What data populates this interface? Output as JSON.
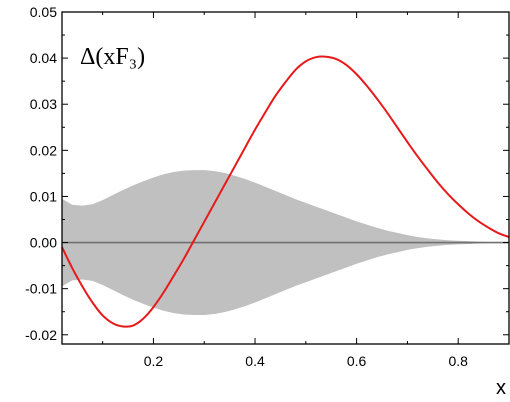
{
  "chart_data": {
    "type": "line",
    "title": "Δ(xF₃)",
    "xlabel": "x",
    "ylabel": "",
    "xlim": [
      0.02,
      0.9
    ],
    "ylim": [
      -0.022,
      0.05
    ],
    "x_ticks": [
      0.2,
      0.4,
      0.6,
      0.8
    ],
    "x_tick_labels": [
      "0.2",
      "0.4",
      "0.6",
      "0.8"
    ],
    "y_ticks": [
      -0.02,
      -0.01,
      0.0,
      0.01,
      0.02,
      0.03,
      0.04,
      0.05
    ],
    "y_tick_labels": [
      "-0.02",
      "-0.01",
      "0.00",
      "0.01",
      "0.02",
      "0.03",
      "0.04",
      "0.05"
    ],
    "grid": false,
    "zero_line": true,
    "colors": {
      "curve": "#e8191a",
      "band": "#c0c0c0",
      "zero_line": "#707070",
      "axes": "#000000"
    },
    "series": [
      {
        "type": "line",
        "x": [
          0.02,
          0.04,
          0.06,
          0.08,
          0.1,
          0.12,
          0.14,
          0.16,
          0.18,
          0.2,
          0.22,
          0.24,
          0.26,
          0.28,
          0.3,
          0.32,
          0.34,
          0.36,
          0.38,
          0.4,
          0.42,
          0.44,
          0.46,
          0.48,
          0.5,
          0.52,
          0.54,
          0.56,
          0.58,
          0.6,
          0.62,
          0.64,
          0.66,
          0.68,
          0.7,
          0.72,
          0.74,
          0.76,
          0.78,
          0.8,
          0.82,
          0.84,
          0.86,
          0.88,
          0.9
        ],
        "y": [
          -0.001,
          -0.0055,
          -0.0095,
          -0.013,
          -0.0158,
          -0.0175,
          -0.0182,
          -0.018,
          -0.0165,
          -0.014,
          -0.0108,
          -0.0072,
          -0.0035,
          0.0005,
          0.0045,
          0.0085,
          0.0125,
          0.0165,
          0.0205,
          0.0245,
          0.0282,
          0.0318,
          0.0348,
          0.0375,
          0.0393,
          0.0402,
          0.0403,
          0.0398,
          0.0385,
          0.0365,
          0.034,
          0.0312,
          0.0282,
          0.025,
          0.0218,
          0.0187,
          0.0158,
          0.013,
          0.0105,
          0.0083,
          0.0063,
          0.0046,
          0.0032,
          0.002,
          0.0012
        ]
      },
      {
        "type": "band",
        "x": [
          0.02,
          0.04,
          0.06,
          0.08,
          0.1,
          0.12,
          0.14,
          0.16,
          0.18,
          0.2,
          0.22,
          0.24,
          0.26,
          0.28,
          0.3,
          0.32,
          0.34,
          0.36,
          0.38,
          0.4,
          0.42,
          0.44,
          0.46,
          0.48,
          0.5,
          0.52,
          0.54,
          0.56,
          0.58,
          0.6,
          0.62,
          0.64,
          0.66,
          0.68,
          0.7,
          0.72,
          0.74,
          0.76,
          0.78,
          0.8,
          0.82,
          0.84,
          0.86,
          0.88,
          0.9
        ],
        "y_upper": [
          0.0095,
          0.0082,
          0.008,
          0.0083,
          0.0092,
          0.0103,
          0.0114,
          0.0124,
          0.0133,
          0.0141,
          0.0148,
          0.0153,
          0.0156,
          0.0157,
          0.0157,
          0.0155,
          0.0151,
          0.0145,
          0.0138,
          0.013,
          0.0121,
          0.0112,
          0.0103,
          0.0094,
          0.0086,
          0.0078,
          0.007,
          0.0062,
          0.0054,
          0.0046,
          0.0039,
          0.0032,
          0.0026,
          0.0021,
          0.0016,
          0.0012,
          0.0009,
          0.0007,
          0.0005,
          0.0004,
          0.0003,
          0.0002,
          0.0001,
          5e-05,
          0.0
        ],
        "y_lower": [
          -0.0095,
          -0.0082,
          -0.008,
          -0.0083,
          -0.0092,
          -0.0103,
          -0.0114,
          -0.0124,
          -0.0133,
          -0.0141,
          -0.0148,
          -0.0153,
          -0.0156,
          -0.0157,
          -0.0157,
          -0.0155,
          -0.0151,
          -0.0145,
          -0.0138,
          -0.013,
          -0.0121,
          -0.0112,
          -0.0103,
          -0.0094,
          -0.0086,
          -0.0078,
          -0.007,
          -0.0062,
          -0.0054,
          -0.0046,
          -0.0039,
          -0.0032,
          -0.0026,
          -0.0021,
          -0.0016,
          -0.0012,
          -0.0009,
          -0.0007,
          -0.0005,
          -0.0004,
          -0.0003,
          -0.0002,
          -0.0001,
          -5e-05,
          0.0
        ]
      }
    ]
  }
}
